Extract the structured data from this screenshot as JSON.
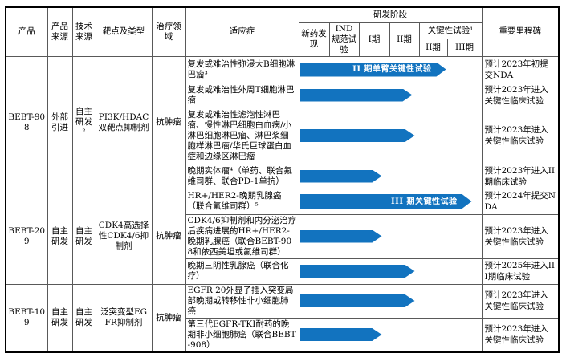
{
  "colors": {
    "arrow": "#1273BF",
    "outer_border": "#000000",
    "grid_line": "#595959",
    "arrow_label_text": "#FFFFFF"
  },
  "header": {
    "product": "产品",
    "product_source": "产品来源",
    "tech_source": "技术来源",
    "target_type": "靶点及类型",
    "therapy_area": "治疗领域",
    "indication": "适应症",
    "stage_group": "研发阶段",
    "stage_discovery": "新药发现",
    "stage_ind": "IND规范试验",
    "stage_p1": "I期",
    "stage_p2": "II期",
    "key_trial": "关键性试验¹",
    "key_p2": "II期",
    "key_p3": "III期",
    "milestone": "重要里程碑"
  },
  "products": [
    {
      "name": "BEBT-908",
      "source": "外部引进",
      "tech": "自主研发²",
      "target": "PI3K/HDAC双靶点抑制剂",
      "area": "抗肿瘤"
    },
    {
      "name": "BEBT-209",
      "source": "自主研发",
      "tech": "自主研发",
      "target": "CDK4高选择性CDK4/6抑制剂",
      "area": "抗肿瘤"
    },
    {
      "name": "BEBT-109",
      "source": "自主研发",
      "tech": "自主研发",
      "target": "泛突变型EGFR抑制剂",
      "area": "抗肿瘤"
    }
  ],
  "rows": [
    {
      "indication": "复发或难治性弥漫大B细胞淋巴瘤³",
      "arrow_label": "II 期单臂关键性试验",
      "arrow_width": 182,
      "reaches": "关键性试验II期",
      "milestone": "预计2023年初提交NDA"
    },
    {
      "indication": "复发或难治性外周T细胞淋巴瘤",
      "arrow_width": 140,
      "reaches": "II期",
      "milestone": "预计2023年进入关键性临床试验"
    },
    {
      "indication": "复发或难治性滤泡性淋巴瘤、慢性淋巴细胞白血病/小淋巴细胞淋巴瘤、淋巴浆细胞样淋巴瘤/华氏巨球蛋白血症和边缘区淋巴瘤",
      "arrow_width": 143,
      "reaches": "II期",
      "milestone": "预计2023年进入关键性临床试验"
    },
    {
      "indication": "晚期实体瘤⁴（单药、联合氟维司群、联合PD-1单抗）",
      "arrow_width": 102,
      "reaches": "I期",
      "milestone": "预计2023年进入II期临床试验"
    },
    {
      "indication": "HR+/HER2-晚期乳腺癌（联合氟维司群）⁵",
      "arrow_label": "III 期关键性试验",
      "arrow_width": 214,
      "reaches": "关键性试验III期",
      "milestone": "预计2024年提交NDA"
    },
    {
      "indication": "CDK4/6抑制剂和内分泌治疗后疾病进展的HR+/HER2-晚期乳腺癌（联合BEBT-908和依西美坦或氟维司群）",
      "arrow_width": 102,
      "reaches": "I期",
      "milestone": "预计2023年进入关键性临床试验"
    },
    {
      "indication": "晚期三阴性乳腺癌（联合化疗）",
      "arrow_width": 143,
      "reaches": "II期",
      "milestone": "预计2025年进入III期临床试验"
    },
    {
      "indication": "EGFR 20外显子插入突变局部晚期或转移性非小细胞肺癌",
      "arrow_width": 143,
      "reaches": "II期",
      "milestone": "预计2023年进入关键性临床试验"
    },
    {
      "indication": "第三代EGFR-TKI耐药的晚期非小细胞肺癌（联合BEBT-908）",
      "arrow_width": 102,
      "reaches": "I期",
      "milestone": "预计2023年进入关键性临床试验"
    }
  ]
}
